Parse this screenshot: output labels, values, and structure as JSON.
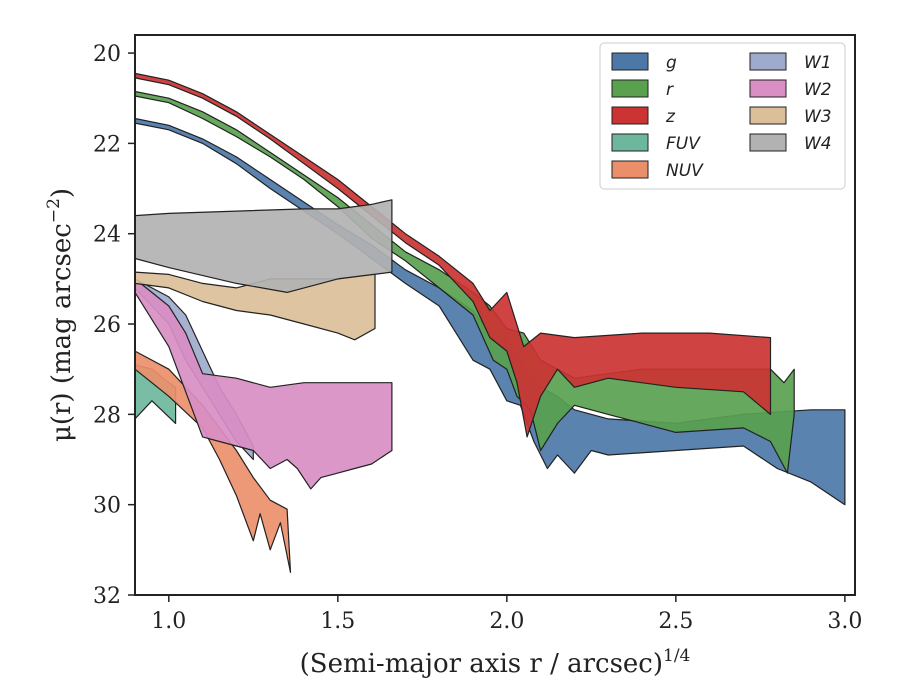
{
  "chart_data": {
    "type": "area",
    "xlabel": "(Semi-major axis r / arcsec)",
    "xlabel_sup": "1/4",
    "ylabel": "μ(r) (mag arcsec",
    "ylabel_sup": "−2",
    "ylabel_tail": ")",
    "xlim": [
      0.9,
      3.03
    ],
    "ylim": [
      32,
      19.6
    ],
    "y_inverted": true,
    "xticks": [
      1.0,
      1.5,
      2.0,
      2.5,
      3.0
    ],
    "xtick_labels": [
      "1.0",
      "1.5",
      "2.0",
      "2.5",
      "3.0"
    ],
    "yticks": [
      20,
      22,
      24,
      26,
      28,
      30,
      32
    ],
    "ytick_labels": [
      "20",
      "22",
      "24",
      "26",
      "28",
      "30",
      "32"
    ],
    "grid": false,
    "legend_position": "top-right",
    "legend_columns": 2,
    "series": [
      {
        "name": "g",
        "color": "#4c78a8",
        "upper": [
          [
            0.9,
            21.45
          ],
          [
            1.0,
            21.6
          ],
          [
            1.1,
            21.9
          ],
          [
            1.2,
            22.3
          ],
          [
            1.3,
            22.8
          ],
          [
            1.4,
            23.3
          ],
          [
            1.5,
            23.8
          ],
          [
            1.6,
            24.25
          ],
          [
            1.7,
            24.8
          ],
          [
            1.8,
            25.2
          ],
          [
            1.9,
            25.7
          ],
          [
            1.95,
            26.2
          ],
          [
            2.0,
            26.3
          ],
          [
            2.05,
            26.9
          ],
          [
            2.1,
            27.4
          ],
          [
            2.15,
            27.6
          ],
          [
            2.2,
            27.9
          ],
          [
            2.3,
            28.1
          ],
          [
            2.5,
            28.2
          ],
          [
            2.7,
            28.0
          ],
          [
            2.9,
            27.9
          ],
          [
            3.0,
            27.9
          ]
        ],
        "lower": [
          [
            3.0,
            30.0
          ],
          [
            2.9,
            29.5
          ],
          [
            2.8,
            29.2
          ],
          [
            2.7,
            28.7
          ],
          [
            2.5,
            28.8
          ],
          [
            2.3,
            28.9
          ],
          [
            2.25,
            28.8
          ],
          [
            2.2,
            29.3
          ],
          [
            2.15,
            28.9
          ],
          [
            2.12,
            29.2
          ],
          [
            2.08,
            28.6
          ],
          [
            2.04,
            27.8
          ],
          [
            2.0,
            27.7
          ],
          [
            1.95,
            27.0
          ],
          [
            1.9,
            26.8
          ],
          [
            1.85,
            26.2
          ],
          [
            1.8,
            25.6
          ],
          [
            1.7,
            25.1
          ],
          [
            1.6,
            24.55
          ],
          [
            1.5,
            24.0
          ],
          [
            1.4,
            23.5
          ],
          [
            1.3,
            23.0
          ],
          [
            1.2,
            22.45
          ],
          [
            1.1,
            22.0
          ],
          [
            1.0,
            21.7
          ],
          [
            0.9,
            21.55
          ]
        ]
      },
      {
        "name": "r",
        "color": "#59a14f",
        "upper": [
          [
            0.9,
            20.85
          ],
          [
            1.0,
            21.0
          ],
          [
            1.1,
            21.3
          ],
          [
            1.2,
            21.7
          ],
          [
            1.3,
            22.2
          ],
          [
            1.4,
            22.7
          ],
          [
            1.5,
            23.2
          ],
          [
            1.6,
            23.8
          ],
          [
            1.7,
            24.4
          ],
          [
            1.8,
            24.8
          ],
          [
            1.9,
            25.3
          ],
          [
            1.95,
            25.6
          ],
          [
            2.0,
            26.1
          ],
          [
            2.05,
            26.2
          ],
          [
            2.1,
            26.8
          ],
          [
            2.2,
            27.2
          ],
          [
            2.4,
            27.0
          ],
          [
            2.6,
            27.0
          ],
          [
            2.78,
            27.0
          ],
          [
            2.82,
            27.3
          ],
          [
            2.85,
            27.0
          ]
        ],
        "lower": [
          [
            2.85,
            28.0
          ],
          [
            2.83,
            29.3
          ],
          [
            2.78,
            28.6
          ],
          [
            2.7,
            28.3
          ],
          [
            2.5,
            28.4
          ],
          [
            2.3,
            28.0
          ],
          [
            2.2,
            27.8
          ],
          [
            2.15,
            28.2
          ],
          [
            2.1,
            28.8
          ],
          [
            2.07,
            27.9
          ],
          [
            2.03,
            27.6
          ],
          [
            2.0,
            27.0
          ],
          [
            1.96,
            26.8
          ],
          [
            1.9,
            25.8
          ],
          [
            1.8,
            25.2
          ],
          [
            1.7,
            24.6
          ],
          [
            1.6,
            24.1
          ],
          [
            1.5,
            23.4
          ],
          [
            1.4,
            22.8
          ],
          [
            1.3,
            22.3
          ],
          [
            1.2,
            21.85
          ],
          [
            1.1,
            21.45
          ],
          [
            1.0,
            21.1
          ],
          [
            0.9,
            20.95
          ]
        ]
      },
      {
        "name": "z",
        "color": "#cc3333",
        "upper": [
          [
            0.9,
            20.45
          ],
          [
            1.0,
            20.6
          ],
          [
            1.1,
            20.9
          ],
          [
            1.2,
            21.3
          ],
          [
            1.3,
            21.8
          ],
          [
            1.4,
            22.3
          ],
          [
            1.5,
            22.8
          ],
          [
            1.6,
            23.4
          ],
          [
            1.7,
            24.0
          ],
          [
            1.8,
            24.5
          ],
          [
            1.9,
            25.1
          ],
          [
            1.95,
            25.7
          ],
          [
            2.0,
            25.3
          ],
          [
            2.05,
            26.5
          ],
          [
            2.1,
            26.2
          ],
          [
            2.2,
            26.3
          ],
          [
            2.4,
            26.2
          ],
          [
            2.6,
            26.2
          ],
          [
            2.78,
            26.3
          ]
        ],
        "lower": [
          [
            2.78,
            28.0
          ],
          [
            2.7,
            27.5
          ],
          [
            2.5,
            27.4
          ],
          [
            2.3,
            27.2
          ],
          [
            2.2,
            27.4
          ],
          [
            2.15,
            27.0
          ],
          [
            2.1,
            27.6
          ],
          [
            2.06,
            28.5
          ],
          [
            2.03,
            27.3
          ],
          [
            2.0,
            26.6
          ],
          [
            1.95,
            26.3
          ],
          [
            1.9,
            25.5
          ],
          [
            1.8,
            24.7
          ],
          [
            1.7,
            24.2
          ],
          [
            1.6,
            23.6
          ],
          [
            1.5,
            23.0
          ],
          [
            1.4,
            22.45
          ],
          [
            1.3,
            21.9
          ],
          [
            1.2,
            21.4
          ],
          [
            1.1,
            21.0
          ],
          [
            1.0,
            20.7
          ],
          [
            0.9,
            20.55
          ]
        ]
      },
      {
        "name": "FUV",
        "color": "#6db79c",
        "upper": [
          [
            0.9,
            26.9
          ],
          [
            0.95,
            27.0
          ],
          [
            1.0,
            27.3
          ],
          [
            1.02,
            27.4
          ]
        ],
        "lower": [
          [
            1.02,
            28.2
          ],
          [
            0.95,
            27.7
          ],
          [
            0.9,
            28.1
          ]
        ]
      },
      {
        "name": "NUV",
        "color": "#eb8f6a",
        "upper": [
          [
            0.9,
            26.6
          ],
          [
            1.0,
            27.0
          ],
          [
            1.1,
            27.8
          ],
          [
            1.2,
            28.8
          ],
          [
            1.25,
            29.4
          ],
          [
            1.3,
            29.9
          ],
          [
            1.35,
            30.1
          ]
        ],
        "lower": [
          [
            1.36,
            31.5
          ],
          [
            1.33,
            30.4
          ],
          [
            1.3,
            31.0
          ],
          [
            1.27,
            30.2
          ],
          [
            1.25,
            30.8
          ],
          [
            1.2,
            29.8
          ],
          [
            1.15,
            29.0
          ],
          [
            1.1,
            28.3
          ],
          [
            1.0,
            27.6
          ],
          [
            0.9,
            27.0
          ]
        ]
      },
      {
        "name": "W1",
        "color": "#9eabcc",
        "upper": [
          [
            0.9,
            25.0
          ],
          [
            1.0,
            25.4
          ],
          [
            1.05,
            25.8
          ],
          [
            1.1,
            26.6
          ],
          [
            1.15,
            27.4
          ],
          [
            1.2,
            28.0
          ],
          [
            1.25,
            28.7
          ]
        ],
        "lower": [
          [
            1.25,
            29.0
          ],
          [
            1.2,
            28.6
          ],
          [
            1.15,
            28.0
          ],
          [
            1.1,
            27.4
          ],
          [
            1.05,
            26.8
          ],
          [
            1.0,
            26.0
          ],
          [
            0.9,
            25.2
          ]
        ]
      },
      {
        "name": "W2",
        "color": "#d98ec4",
        "upper": [
          [
            0.9,
            25.0
          ],
          [
            1.0,
            25.6
          ],
          [
            1.05,
            26.2
          ],
          [
            1.1,
            27.1
          ],
          [
            1.2,
            27.2
          ],
          [
            1.3,
            27.4
          ],
          [
            1.4,
            27.3
          ],
          [
            1.5,
            27.3
          ],
          [
            1.6,
            27.3
          ],
          [
            1.66,
            27.3
          ]
        ],
        "lower": [
          [
            1.66,
            28.8
          ],
          [
            1.6,
            29.1
          ],
          [
            1.55,
            29.2
          ],
          [
            1.5,
            29.3
          ],
          [
            1.45,
            29.4
          ],
          [
            1.42,
            29.65
          ],
          [
            1.38,
            29.2
          ],
          [
            1.35,
            29.0
          ],
          [
            1.3,
            29.2
          ],
          [
            1.25,
            28.8
          ],
          [
            1.2,
            28.7
          ],
          [
            1.15,
            28.6
          ],
          [
            1.1,
            28.5
          ],
          [
            1.05,
            27.5
          ],
          [
            1.0,
            26.5
          ],
          [
            0.9,
            25.3
          ]
        ]
      },
      {
        "name": "W3",
        "color": "#dbbf99",
        "upper": [
          [
            0.9,
            24.85
          ],
          [
            1.0,
            24.9
          ],
          [
            1.1,
            25.1
          ],
          [
            1.2,
            25.2
          ],
          [
            1.3,
            25.0
          ],
          [
            1.4,
            25.0
          ],
          [
            1.5,
            25.0
          ],
          [
            1.6,
            24.9
          ],
          [
            1.61,
            24.9
          ]
        ],
        "lower": [
          [
            1.61,
            26.1
          ],
          [
            1.55,
            26.35
          ],
          [
            1.5,
            26.2
          ],
          [
            1.4,
            26.0
          ],
          [
            1.3,
            25.8
          ],
          [
            1.2,
            25.7
          ],
          [
            1.1,
            25.5
          ],
          [
            1.0,
            25.2
          ],
          [
            0.9,
            25.1
          ]
        ]
      },
      {
        "name": "W4",
        "color": "#b2b2b2",
        "upper": [
          [
            0.9,
            23.6
          ],
          [
            1.0,
            23.55
          ],
          [
            1.2,
            23.5
          ],
          [
            1.4,
            23.45
          ],
          [
            1.5,
            23.45
          ],
          [
            1.6,
            23.35
          ],
          [
            1.66,
            23.25
          ]
        ],
        "lower": [
          [
            1.66,
            24.85
          ],
          [
            1.5,
            25.0
          ],
          [
            1.4,
            25.2
          ],
          [
            1.35,
            25.3
          ],
          [
            1.2,
            25.1
          ],
          [
            1.0,
            24.75
          ],
          [
            0.9,
            24.55
          ]
        ]
      }
    ]
  }
}
